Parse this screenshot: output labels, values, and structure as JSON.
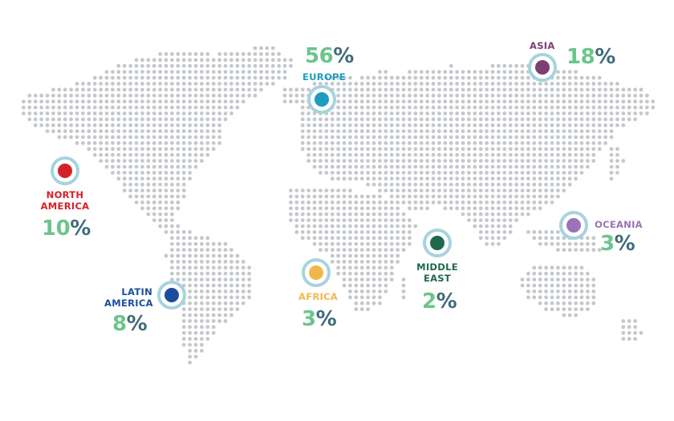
{
  "dot_color": "#c4c8cc",
  "ring_color": "#a7d3dd",
  "regions": [
    {
      "key": "europe",
      "label": "EUROPE",
      "pct_num": "56",
      "pct_sign": "%",
      "color": "#1d9bc1"
    },
    {
      "key": "asia",
      "label": "ASIA",
      "pct_num": "18",
      "pct_sign": "%",
      "color": "#7b3f72"
    },
    {
      "key": "north_america",
      "label_line1": "NORTH",
      "label_line2": "AMERICA",
      "pct_num": "10",
      "pct_sign": "%",
      "color": "#d52128"
    },
    {
      "key": "oceania",
      "label": "OCEANIA",
      "pct_num": "3",
      "pct_sign": "%",
      "color": "#9a73b8"
    },
    {
      "key": "middle_east",
      "label_line1": "MIDDLE",
      "label_line2": "EAST",
      "pct_num": "2",
      "pct_sign": "%",
      "color": "#1f6a4c"
    },
    {
      "key": "africa",
      "label": "AFRICA",
      "pct_num": "3",
      "pct_sign": "%",
      "color": "#f1b74d"
    },
    {
      "key": "latin_america",
      "label_line1": "LATIN",
      "label_line2": "AMERICA",
      "pct_num": "8",
      "pct_sign": "%",
      "color": "#1b4d9f"
    }
  ],
  "pct_sign_color": "#3f6b7a"
}
